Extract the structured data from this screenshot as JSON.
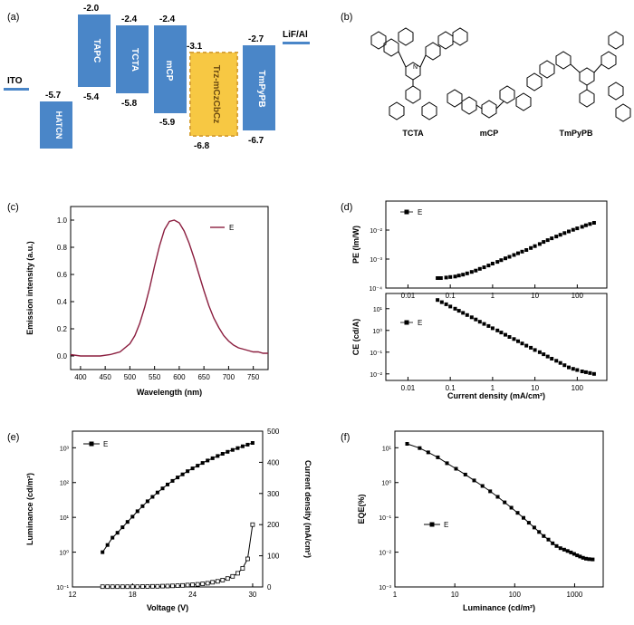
{
  "panels": {
    "a": "(a)",
    "b": "(b)",
    "c": "(c)",
    "d": "(d)",
    "e": "(e)",
    "f": "(f)"
  },
  "colors": {
    "layer_blue": "#4a86c8",
    "emitter_fill": "#f7c843",
    "emitter_border": "#d9a43a",
    "spectrum_line": "#8b1e3f",
    "axis": "#000000"
  },
  "energy_diagram": {
    "layers": [
      {
        "name": "ITO",
        "level": "",
        "kind": "electrode"
      },
      {
        "name": "HATCN",
        "homo": "-5.7",
        "lumo": ""
      },
      {
        "name": "TAPC",
        "lumo": "-2.0",
        "homo": "-5.4"
      },
      {
        "name": "TCTA",
        "lumo": "-2.4",
        "homo": "-5.8"
      },
      {
        "name": "mCP",
        "lumo": "-2.4",
        "homo": "-5.9"
      },
      {
        "name": "Trz-mCzCbCz",
        "lumo": "-3.1",
        "homo": "-6.8"
      },
      {
        "name": "TmPyPB",
        "lumo": "-2.7",
        "homo": "-6.7"
      },
      {
        "name": "LiF/Al",
        "level": "",
        "kind": "electrode"
      }
    ]
  },
  "molecules": [
    "TCTA",
    "mCP",
    "TmPyPB"
  ],
  "chart_data": [
    {
      "panel": "c",
      "type": "line",
      "title": "",
      "xlabel": "Wavelength (nm)",
      "ylabel": "Emission intensity (a.u.)",
      "xlim": [
        380,
        780
      ],
      "ylim": [
        -0.1,
        1.1
      ],
      "xticks": [
        "400",
        "450",
        "500",
        "550",
        "600",
        "650",
        "700",
        "750"
      ],
      "yticks": [
        "0.0",
        "0.2",
        "0.4",
        "0.6",
        "0.8",
        "1.0"
      ],
      "legend": "E",
      "series": [
        {
          "name": "E",
          "x": [
            380,
            400,
            420,
            440,
            460,
            480,
            500,
            510,
            520,
            530,
            540,
            550,
            560,
            570,
            580,
            590,
            600,
            610,
            620,
            630,
            640,
            650,
            660,
            670,
            680,
            690,
            700,
            710,
            720,
            730,
            740,
            750,
            760,
            770,
            780
          ],
          "y": [
            0.01,
            0.0,
            0.0,
            0.0,
            0.01,
            0.03,
            0.09,
            0.15,
            0.24,
            0.36,
            0.5,
            0.66,
            0.81,
            0.93,
            0.99,
            1.0,
            0.98,
            0.92,
            0.83,
            0.72,
            0.6,
            0.48,
            0.37,
            0.28,
            0.21,
            0.15,
            0.11,
            0.08,
            0.06,
            0.05,
            0.04,
            0.03,
            0.03,
            0.02,
            0.02
          ]
        }
      ]
    },
    {
      "panel": "d-top",
      "type": "scatter",
      "xlabel": "",
      "ylabel": "PE (lm/W)",
      "xscale": "log",
      "yscale": "log",
      "xlim": [
        0.003,
        500
      ],
      "ylim": [
        0.0001,
        0.1
      ],
      "xticks": [
        "0.01",
        "0.1",
        "1",
        "10",
        "100"
      ],
      "ytick_labels": [
        "10⁻⁴",
        "10⁻³",
        "10⁻²"
      ],
      "legend": "E",
      "series": [
        {
          "name": "E",
          "x": [
            0.05,
            0.06,
            0.08,
            0.1,
            0.13,
            0.16,
            0.2,
            0.25,
            0.32,
            0.4,
            0.5,
            0.63,
            0.8,
            1.0,
            1.3,
            1.6,
            2.0,
            2.5,
            3.2,
            4.0,
            5.0,
            6.3,
            8.0,
            10,
            13,
            16,
            20,
            25,
            32,
            40,
            50,
            63,
            80,
            100,
            130,
            160,
            200,
            250
          ],
          "y": [
            0.00022,
            0.00022,
            0.00023,
            0.00024,
            0.00025,
            0.00027,
            0.00029,
            0.00032,
            0.00036,
            0.0004,
            0.00046,
            0.00052,
            0.0006,
            0.0007,
            0.0008,
            0.00092,
            0.00106,
            0.0012,
            0.00138,
            0.00158,
            0.0018,
            0.00205,
            0.0024,
            0.0028,
            0.0033,
            0.0039,
            0.0045,
            0.0052,
            0.006,
            0.0069,
            0.0079,
            0.009,
            0.0102,
            0.0115,
            0.013,
            0.0146,
            0.0162,
            0.0178
          ]
        }
      ]
    },
    {
      "panel": "d-bottom",
      "type": "scatter",
      "xlabel": "Current density (mA/cm²)",
      "ylabel": "CE (cd/A)",
      "xscale": "log",
      "yscale": "log",
      "xlim": [
        0.003,
        500
      ],
      "ylim": [
        0.005,
        50
      ],
      "xticks": [
        "0.01",
        "0.1",
        "1",
        "10",
        "100"
      ],
      "ytick_labels": [
        "10⁻²",
        "10⁻¹",
        "10⁰",
        "10¹"
      ],
      "legend": "E",
      "series": [
        {
          "name": "E",
          "x": [
            0.05,
            0.063,
            0.08,
            0.1,
            0.13,
            0.16,
            0.2,
            0.25,
            0.32,
            0.4,
            0.5,
            0.63,
            0.8,
            1.0,
            1.3,
            1.6,
            2.0,
            2.5,
            3.2,
            4.0,
            5.0,
            6.3,
            8.0,
            10,
            13,
            16,
            20,
            25,
            32,
            40,
            50,
            63,
            80,
            100,
            130,
            160,
            200,
            250
          ],
          "y": [
            25,
            20,
            16,
            12.5,
            10,
            8,
            6.4,
            5.1,
            4.0,
            3.2,
            2.5,
            2.0,
            1.6,
            1.25,
            1.0,
            0.8,
            0.63,
            0.5,
            0.4,
            0.32,
            0.25,
            0.2,
            0.16,
            0.125,
            0.1,
            0.08,
            0.063,
            0.05,
            0.04,
            0.032,
            0.025,
            0.02,
            0.017,
            0.015,
            0.013,
            0.012,
            0.011,
            0.01
          ]
        }
      ]
    },
    {
      "panel": "e",
      "type": "line",
      "xlabel": "Voltage (V)",
      "ylabel": "Luminance (cd/m²)",
      "y2label": "Current density (mA/cm²)",
      "xlim": [
        12,
        31
      ],
      "ylim": [
        0.1,
        3000
      ],
      "y2lim": [
        0,
        500
      ],
      "yscale": "log",
      "xticks": [
        "12",
        "18",
        "24",
        "30"
      ],
      "ytick_labels": [
        "10⁻¹",
        "10⁰",
        "10¹",
        "10²",
        "10³"
      ],
      "y2ticks": [
        "0",
        "100",
        "200",
        "300",
        "400",
        "500"
      ],
      "legend": "E",
      "series": [
        {
          "name": "Luminance",
          "axis": "left",
          "x": [
            15,
            15.5,
            16,
            16.5,
            17,
            17.5,
            18,
            18.5,
            19,
            19.5,
            20,
            20.5,
            21,
            21.5,
            22,
            22.5,
            23,
            23.5,
            24,
            24.5,
            25,
            25.5,
            26,
            26.5,
            27,
            27.5,
            28,
            28.5,
            29,
            29.5,
            30
          ],
          "y": [
            1.0,
            1.6,
            2.6,
            3.6,
            5.2,
            7.4,
            10.5,
            15,
            21,
            29,
            39,
            52,
            68,
            88,
            112,
            140,
            172,
            212,
            255,
            305,
            365,
            430,
            500,
            580,
            670,
            765,
            870,
            980,
            1100,
            1230,
            1380
          ]
        },
        {
          "name": "Current density",
          "axis": "right",
          "x": [
            15,
            15.5,
            16,
            16.5,
            17,
            17.5,
            18,
            18.5,
            19,
            19.5,
            20,
            20.5,
            21,
            21.5,
            22,
            22.5,
            23,
            23.5,
            24,
            24.5,
            25,
            25.5,
            26,
            26.5,
            27,
            27.5,
            28,
            28.5,
            29,
            29.5,
            30
          ],
          "y": [
            1,
            1,
            1,
            1,
            1,
            1,
            1,
            1,
            1.5,
            1.5,
            2,
            2,
            2.5,
            3,
            3.5,
            4,
            5,
            6,
            7,
            8.5,
            10,
            12,
            15,
            18,
            22,
            27,
            34,
            44,
            60,
            90,
            200
          ]
        }
      ]
    },
    {
      "panel": "f",
      "type": "line",
      "xlabel": "Luminance (cd/m²)",
      "ylabel": "EQE(%)",
      "xscale": "log",
      "yscale": "log",
      "xlim": [
        1,
        3000
      ],
      "ylim": [
        0.001,
        30
      ],
      "xticks": [
        "1",
        "10",
        "100",
        "1000"
      ],
      "ytick_labels": [
        "10⁻³",
        "10⁻²",
        "10⁻¹",
        "10⁰",
        "10¹"
      ],
      "legend": "E",
      "series": [
        {
          "name": "E",
          "x": [
            1.6,
            2.6,
            3.6,
            5.2,
            7.4,
            10.5,
            15,
            21,
            29,
            39,
            52,
            68,
            88,
            112,
            140,
            172,
            212,
            255,
            305,
            365,
            430,
            500,
            580,
            670,
            765,
            870,
            980,
            1100,
            1230,
            1380,
            1550,
            1750,
            2000
          ],
          "y": [
            13,
            9.8,
            7.4,
            5.3,
            3.6,
            2.5,
            1.7,
            1.15,
            0.8,
            0.56,
            0.39,
            0.27,
            0.19,
            0.135,
            0.097,
            0.07,
            0.051,
            0.038,
            0.029,
            0.023,
            0.018,
            0.015,
            0.013,
            0.0118,
            0.0108,
            0.0098,
            0.0089,
            0.0081,
            0.0075,
            0.0069,
            0.0065,
            0.0063,
            0.0062
          ]
        }
      ]
    }
  ]
}
